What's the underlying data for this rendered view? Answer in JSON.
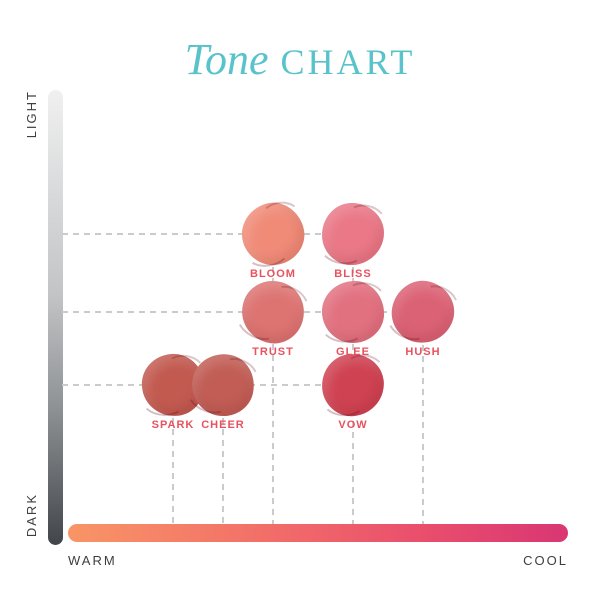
{
  "title": {
    "word_italic": "Tone",
    "word_caps": "CHART"
  },
  "colors": {
    "title": "#58c3ca",
    "shade_label": "#e8525e",
    "guide_line": "#cbcbcb",
    "y_bar_top": "#f0f0f0",
    "y_bar_bottom": "#42464a",
    "x_bar_left": "#f89566",
    "x_bar_right": "#d93673"
  },
  "axes": {
    "y_top_label": "LIGHT",
    "y_bottom_label": "DARK",
    "x_left_label": "WARM",
    "x_right_label": "COOL"
  },
  "chart_data": {
    "type": "scatter",
    "title": "Tone CHART",
    "xlabel": "WARM to COOL",
    "ylabel": "LIGHT to DARK",
    "x_axis": {
      "left": "WARM",
      "right": "COOL",
      "range": [
        0,
        1
      ]
    },
    "y_axis": {
      "top": "LIGHT",
      "bottom": "DARK",
      "range": [
        0,
        1
      ]
    },
    "grid": "dashed guide lines from each point to both axes",
    "legend_position": "none",
    "points": [
      {
        "name": "BLOOM",
        "color": "#f08b78",
        "warm_cool": 0.41,
        "light_dark": 0.32
      },
      {
        "name": "BLISS",
        "color": "#ea7887",
        "warm_cool": 0.57,
        "light_dark": 0.32
      },
      {
        "name": "TRUST",
        "color": "#dd7472",
        "warm_cool": 0.41,
        "light_dark": 0.49
      },
      {
        "name": "GLEE",
        "color": "#e27180",
        "warm_cool": 0.57,
        "light_dark": 0.49
      },
      {
        "name": "HUSH",
        "color": "#db6275",
        "warm_cool": 0.71,
        "light_dark": 0.49
      },
      {
        "name": "SPARK",
        "color": "#c25a50",
        "warm_cool": 0.21,
        "light_dark": 0.65
      },
      {
        "name": "CHEER",
        "color": "#c15d55",
        "warm_cool": 0.31,
        "light_dark": 0.65
      },
      {
        "name": "VOW",
        "color": "#cf4252",
        "warm_cool": 0.57,
        "light_dark": 0.65
      }
    ]
  }
}
